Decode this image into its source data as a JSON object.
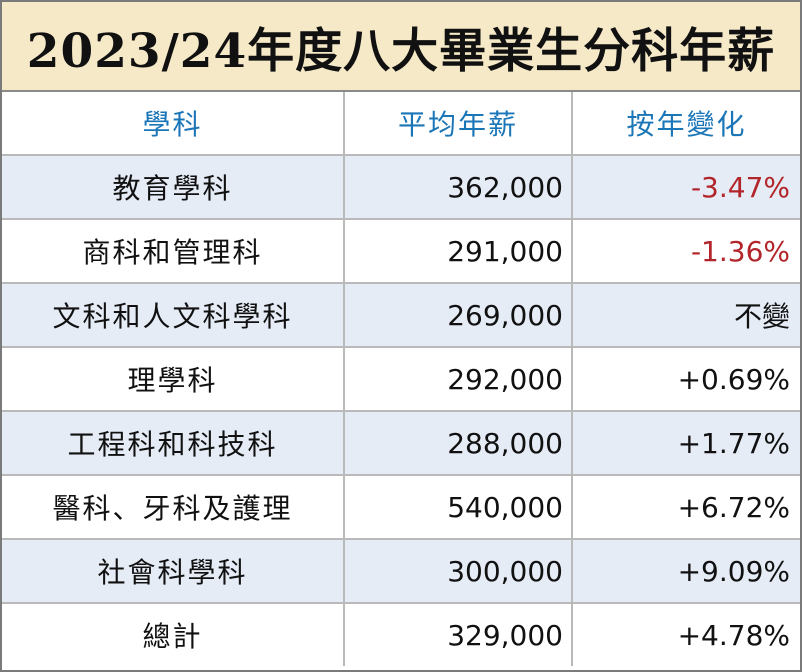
{
  "title": "2023/24年度八大畢業生分科年薪",
  "headers": {
    "subject": "學科",
    "salary": "平均年薪",
    "change": "按年變化"
  },
  "rows": [
    {
      "subject": "教育學科",
      "salary": "362,000",
      "change": "-3.47%",
      "negative": true
    },
    {
      "subject": "商科和管理科",
      "salary": "291,000",
      "change": "-1.36%",
      "negative": true
    },
    {
      "subject": "文科和人文科學科",
      "salary": "269,000",
      "change": "不變",
      "negative": false
    },
    {
      "subject": "理學科",
      "salary": "292,000",
      "change": "+0.69%",
      "negative": false
    },
    {
      "subject": "工程科和科技科",
      "salary": "288,000",
      "change": "+1.77%",
      "negative": false
    },
    {
      "subject": "醫科、牙科及護理",
      "salary": "540,000",
      "change": "+6.72%",
      "negative": false
    },
    {
      "subject": "社會科學科",
      "salary": "300,000",
      "change": "+9.09%",
      "negative": false
    },
    {
      "subject": "總計",
      "salary": "329,000",
      "change": "+4.78%",
      "negative": false
    }
  ],
  "colors": {
    "title_bg": "#f6e9c7",
    "header_text": "#1b76b8",
    "row_shade": "#e6ecf6",
    "negative": "#b2252a"
  }
}
